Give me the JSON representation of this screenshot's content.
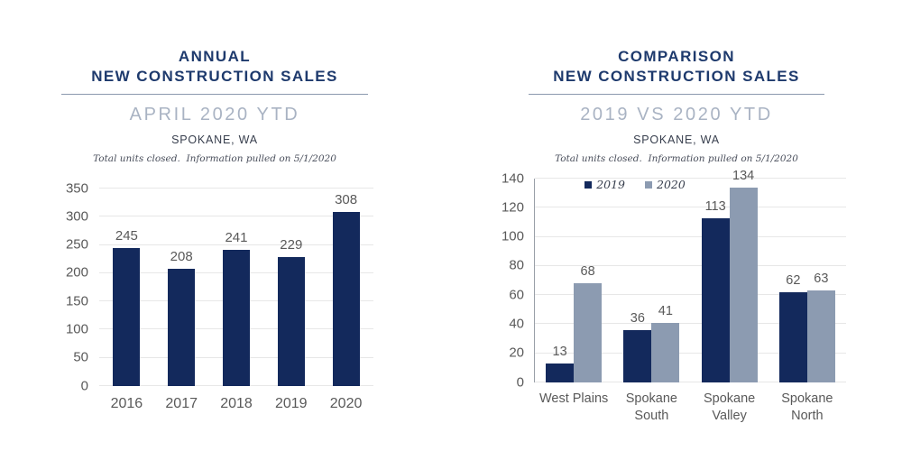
{
  "charts": [
    {
      "title_line1": "ANNUAL",
      "title_line2": "NEW CONSTRUCTION SALES",
      "subtitle": "APRIL 2020 YTD",
      "location": "SPOKANE, WA",
      "note": "Total units closed.  Information pulled on 5/1/2020"
    },
    {
      "title_line1": "COMPARISON",
      "title_line2": "NEW CONSTRUCTION SALES",
      "subtitle": "2019 VS 2020 YTD",
      "location": "SPOKANE, WA",
      "note": "Total units closed.  Information pulled on 5/1/2020"
    }
  ],
  "colors": {
    "title_navy": "#1e3a6d",
    "divider": "#8a99ae",
    "subtitle_gray_blue": "#a9b3c3",
    "bar_navy": "#13295c",
    "bar_gray_blue": "#8c9bb1",
    "gridline": "#e7e7e7",
    "axis_spine": "#9aa0a8",
    "tick_label_gray": "#595959"
  },
  "chart_data": [
    {
      "type": "bar",
      "title": "ANNUAL NEW CONSTRUCTION SALES",
      "subtitle": "APRIL 2020 YTD",
      "location": "SPOKANE, WA",
      "note": "Total units closed.  Information pulled on 5/1/2020",
      "categories": [
        "2016",
        "2017",
        "2018",
        "2019",
        "2020"
      ],
      "values": [
        245,
        208,
        241,
        229,
        308
      ],
      "xlabel": "",
      "ylabel": "",
      "ylim": [
        0,
        350
      ],
      "ystep": 50,
      "grid": true,
      "legend_position": "none",
      "bar_color": "#13295c",
      "data_labels": true
    },
    {
      "type": "bar",
      "title": "COMPARISON NEW CONSTRUCTION SALES",
      "subtitle": "2019 VS 2020 YTD",
      "location": "SPOKANE, WA",
      "note": "Total units closed.  Information pulled on 5/1/2020",
      "categories": [
        "West Plains",
        "Spokane\nSouth",
        "Spokane\nValley",
        "Spokane\nNorth"
      ],
      "series": [
        {
          "name": "2019",
          "color": "#13295c",
          "values": [
            13,
            36,
            113,
            62
          ]
        },
        {
          "name": "2020",
          "color": "#8c9bb1",
          "values": [
            68,
            41,
            134,
            63
          ]
        }
      ],
      "xlabel": "",
      "ylabel": "",
      "ylim": [
        0,
        140
      ],
      "ystep": 20,
      "grid": true,
      "legend_position": "top",
      "data_labels": true
    }
  ]
}
